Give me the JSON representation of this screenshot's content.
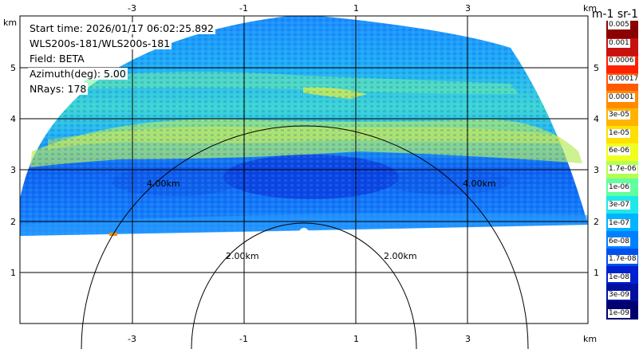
{
  "info": {
    "start_time": "Start time: 2026/01/17 06:02:25.892",
    "instrument": "WLS200s-181/WLS200s-181",
    "field": "Field: BETA",
    "azimuth": "Azimuth(deg): 5.00",
    "nrays": "NRays: 178"
  },
  "axes": {
    "x_ticks": [
      "-3",
      "-1",
      "1",
      "3"
    ],
    "y_ticks": [
      "1",
      "2",
      "3",
      "4",
      "5"
    ],
    "unit": "km"
  },
  "range_rings": {
    "labels": [
      "2.00km",
      "2.00km",
      "4.00km",
      "4.00km"
    ]
  },
  "colorbar": {
    "title": "m-1 sr-1",
    "labels": [
      "0.005",
      "0.001",
      "0.0006",
      "0.00017",
      "0.0001",
      "3e-05",
      "1e-05",
      "6e-06",
      "1.7e-06",
      "1e-06",
      "3e-07",
      "1e-07",
      "6e-08",
      "1.7e-08",
      "1e-08",
      "3e-09",
      "1e-09"
    ],
    "colors": [
      "#8b0000",
      "#c81010",
      "#ff2000",
      "#ff5a00",
      "#ff8c00",
      "#ffb400",
      "#ffe000",
      "#f0ff20",
      "#b4ff50",
      "#60ffa0",
      "#20e8e8",
      "#00b4ff",
      "#0080ff",
      "#0050f0",
      "#0020d0",
      "#0010a0",
      "#000070"
    ]
  },
  "colors": {
    "sky_low": "#1a8cff",
    "sky_mid": "#20b4f0",
    "band_yellow": "#c8f050",
    "band_green": "#70f0a0",
    "dark_blue": "#0a3cdc"
  }
}
